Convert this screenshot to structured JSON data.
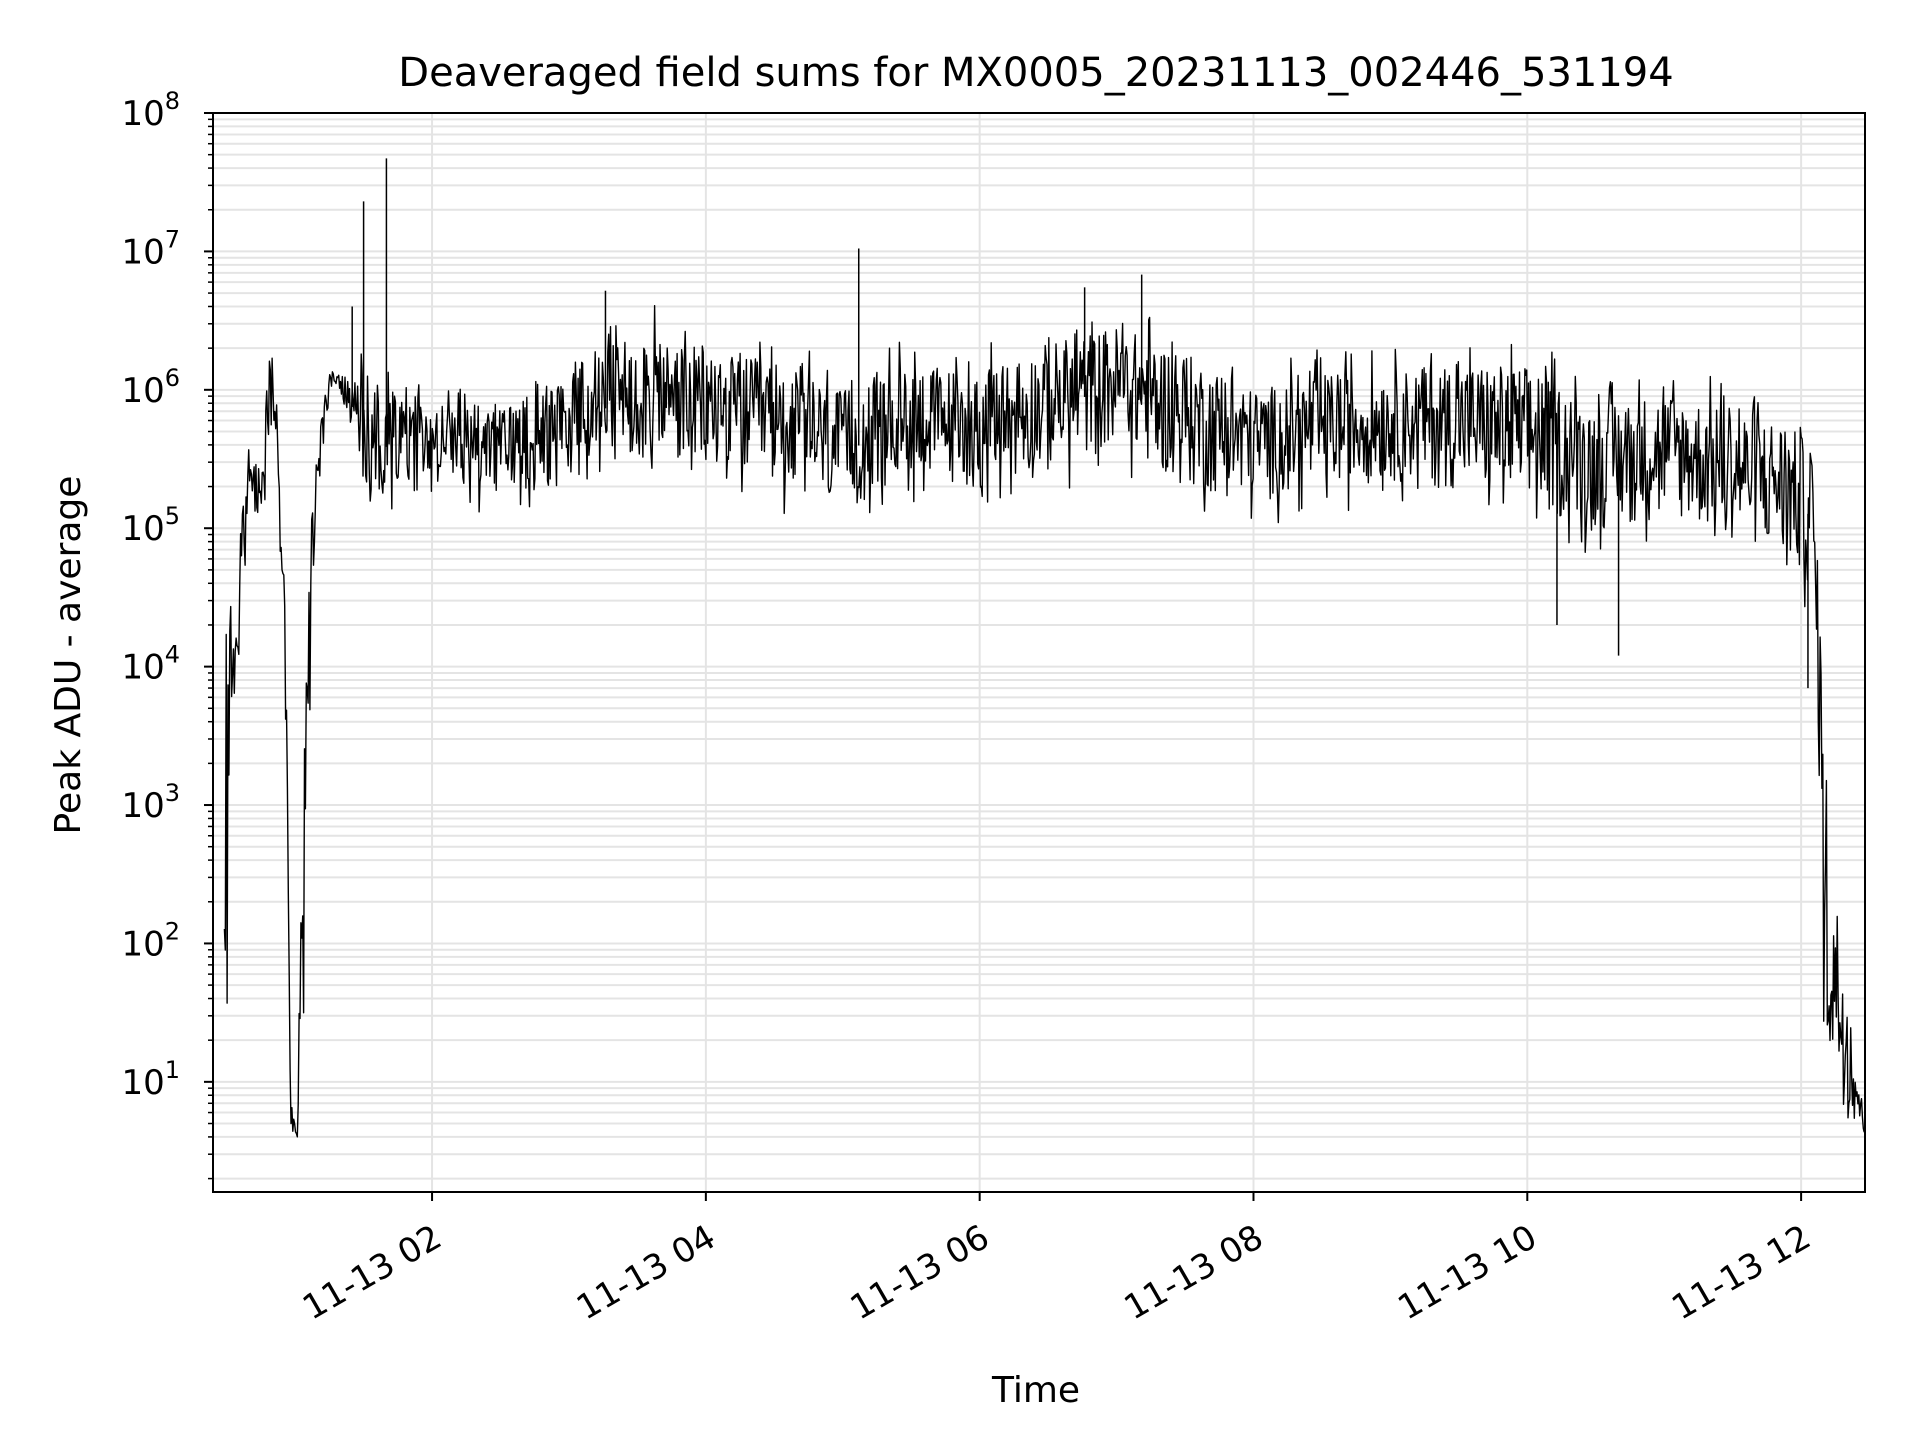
{
  "chart_data": {
    "type": "line",
    "title": "Deaveraged field sums for MX0005_20231113_002446_531194",
    "xlabel": "Time",
    "ylabel": "Peak ADU - average",
    "yscale": "log",
    "ylim": [
      1.6,
      100000000
    ],
    "xlim": [
      "2023-11-13 00:24",
      "2023-11-13 12:28"
    ],
    "grid": true,
    "line_color": "#000000",
    "grid_color": "#e4e4e4",
    "x_ticks": [
      "2023-11-13 02:00",
      "2023-11-13 04:00",
      "2023-11-13 06:00",
      "2023-11-13 08:00",
      "2023-11-13 10:00",
      "2023-11-13 12:00"
    ],
    "x_tick_labels": [
      "11-13 02",
      "11-13 04",
      "11-13 06",
      "11-13 08",
      "11-13 10",
      "11-13 12"
    ],
    "y_ticks": [
      10,
      100,
      1000,
      10000,
      100000,
      1000000,
      10000000,
      100000000
    ],
    "y_tick_labels": [
      {
        "base": "10",
        "exp": "1"
      },
      {
        "base": "10",
        "exp": "2"
      },
      {
        "base": "10",
        "exp": "3"
      },
      {
        "base": "10",
        "exp": "4"
      },
      {
        "base": "10",
        "exp": "5"
      },
      {
        "base": "10",
        "exp": "6"
      },
      {
        "base": "10",
        "exp": "7"
      },
      {
        "base": "10",
        "exp": "8"
      }
    ],
    "series": [
      {
        "envelope": [
          [
            "2023-11-13 00:29",
            2,
            120000
          ],
          [
            "2023-11-13 00:32",
            1200,
            60000
          ],
          [
            "2023-11-13 00:36",
            10000,
            200000
          ],
          [
            "2023-11-13 00:40",
            120000,
            500000
          ],
          [
            "2023-11-13 00:43",
            80000,
            300000
          ],
          [
            "2023-11-13 00:46",
            100000,
            1000000
          ],
          [
            "2023-11-13 00:49",
            300000,
            2500000
          ],
          [
            "2023-11-13 00:52",
            500000,
            900000
          ],
          [
            "2023-11-13 00:56",
            1500,
            30000
          ],
          [
            "2023-11-13 00:58",
            4,
            10
          ],
          [
            "2023-11-13 01:01",
            4,
            4
          ],
          [
            "2023-11-13 01:04",
            20,
            50000
          ],
          [
            "2023-11-13 01:08",
            50000,
            300000
          ],
          [
            "2023-11-13 01:12",
            300000,
            900000
          ],
          [
            "2023-11-13 01:16",
            1000000,
            1600000
          ],
          [
            "2023-11-13 01:21",
            800000,
            1400000
          ],
          [
            "2023-11-13 01:30",
            120000,
            2000000
          ],
          [
            "2023-11-13 01:40",
            100000,
            1500000
          ],
          [
            "2023-11-13 02:00",
            120000,
            1200000
          ],
          [
            "2023-11-13 02:30",
            120000,
            1100000
          ],
          [
            "2023-11-13 03:00",
            150000,
            2000000
          ],
          [
            "2023-11-13 03:30",
            200000,
            4500000
          ],
          [
            "2023-11-13 04:00",
            150000,
            3000000
          ],
          [
            "2023-11-13 04:30",
            130000,
            2500000
          ],
          [
            "2023-11-13 05:00",
            80000,
            1500000
          ],
          [
            "2023-11-13 05:30",
            150000,
            2500000
          ],
          [
            "2023-11-13 06:00",
            120000,
            2000000
          ],
          [
            "2023-11-13 06:30",
            150000,
            3500000
          ],
          [
            "2023-11-13 07:00",
            250000,
            4500000
          ],
          [
            "2023-11-13 07:30",
            120000,
            3000000
          ],
          [
            "2023-11-13 08:00",
            100000,
            1500000
          ],
          [
            "2023-11-13 08:30",
            120000,
            2000000
          ],
          [
            "2023-11-13 09:00",
            150000,
            2000000
          ],
          [
            "2023-11-13 09:30",
            120000,
            2500000
          ],
          [
            "2023-11-13 10:00",
            80000,
            2500000
          ],
          [
            "2023-11-13 10:30",
            60000,
            1200000
          ],
          [
            "2023-11-13 11:00",
            80000,
            1500000
          ],
          [
            "2023-11-13 11:30",
            50000,
            1200000
          ],
          [
            "2023-11-13 11:50",
            40000,
            1000000
          ],
          [
            "2023-11-13 12:05",
            20000,
            700000
          ],
          [
            "2023-11-13 12:09",
            500,
            20000
          ],
          [
            "2023-11-13 12:10",
            4,
            3500
          ],
          [
            "2023-11-13 12:28",
            4,
            4.5
          ]
        ],
        "spikes": [
          [
            "2023-11-13 01:25",
            4000000
          ],
          [
            "2023-11-13 01:30",
            23000000
          ],
          [
            "2023-11-13 01:40",
            47000000
          ],
          [
            "2023-11-13 05:07",
            10500000
          ],
          [
            "2023-11-13 07:11",
            6800000
          ],
          [
            "2023-11-13 06:46",
            5500000
          ],
          [
            "2023-11-13 03:16",
            5200000
          ],
          [
            "2023-11-13 10:13",
            20000
          ],
          [
            "2023-11-13 10:40",
            12000
          ],
          [
            "2023-11-13 12:03",
            7000
          ]
        ]
      }
    ]
  }
}
